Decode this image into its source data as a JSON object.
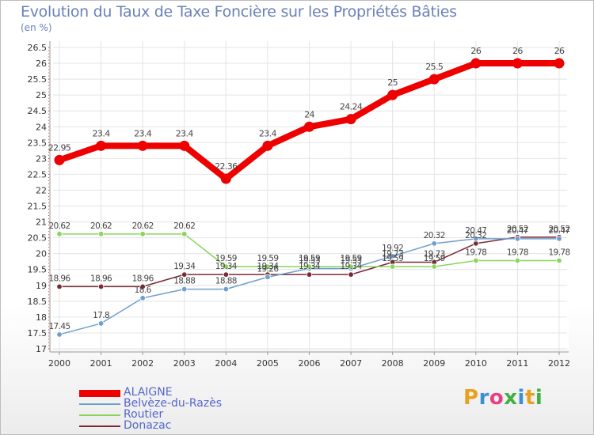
{
  "chart_data": {
    "type": "line",
    "title": "Evolution du Taux de Taxe Foncière sur les Propriétés Bâties",
    "subtitle": "(en %)",
    "xlabel": "",
    "ylabel": "",
    "categories": [
      "2000",
      "2001",
      "2002",
      "2003",
      "2004",
      "2005",
      "2006",
      "2007",
      "2008",
      "2009",
      "2010",
      "2011",
      "2012"
    ],
    "ylim": [
      17,
      26.5
    ],
    "yticks": [
      "17",
      "17.5",
      "18",
      "18.5",
      "19",
      "19.5",
      "20",
      "20.5",
      "21",
      "21.5",
      "22",
      "22.5",
      "23",
      "23.5",
      "24",
      "24.5",
      "25",
      "25.5",
      "26",
      "26.5"
    ],
    "series": [
      {
        "name": "ALAIGNE",
        "color": "#ee0000",
        "values": [
          22.95,
          23.4,
          23.4,
          23.4,
          22.36,
          23.4,
          24,
          24.24,
          25,
          25.5,
          26,
          26,
          26
        ],
        "labels": [
          "22.95",
          "23.4",
          "23.4",
          "23.4",
          "22.36",
          "23.4",
          "24",
          "24.24",
          "25",
          "25.5",
          "26",
          "26",
          "26"
        ]
      },
      {
        "name": "Belvèze-du-Razès",
        "color": "#6f9fcf",
        "values": [
          17.45,
          17.8,
          18.6,
          18.88,
          18.88,
          19.26,
          19.53,
          19.53,
          19.92,
          20.32,
          20.47,
          20.47,
          20.47
        ],
        "labels": [
          "17.45",
          "17.8",
          "18.6",
          "18.88",
          "18.88",
          "19.26",
          "19.53",
          "19.53",
          "19.92",
          "20.32",
          "20.47",
          "20.47",
          "20.47"
        ]
      },
      {
        "name": "Routier",
        "color": "#88d65a",
        "values": [
          20.62,
          20.62,
          20.62,
          20.62,
          19.59,
          19.59,
          19.59,
          19.59,
          19.59,
          19.59,
          19.78,
          19.78,
          19.78
        ],
        "labels": [
          "20.62",
          "20.62",
          "20.62",
          "20.62",
          "19.59",
          "19.59",
          "19.59",
          "19.59",
          "19.59",
          "19.59",
          "19.78",
          "19.78",
          "19.78"
        ]
      },
      {
        "name": "Donazac",
        "color": "#7a2a35",
        "values": [
          18.96,
          18.96,
          18.96,
          19.34,
          19.34,
          19.34,
          19.34,
          19.34,
          19.73,
          19.73,
          20.32,
          20.52,
          20.52
        ],
        "labels": [
          "18.96",
          "18.96",
          "18.96",
          "19.34",
          "19.34",
          "19.34",
          "19.34",
          "19.34",
          "19.73",
          "19.73",
          "20.32",
          "20.52",
          "20.52"
        ]
      }
    ]
  },
  "legend": {
    "items": [
      "ALAIGNE",
      "Belvèze-du-Razès",
      "Routier",
      "Donazac"
    ]
  },
  "brand": {
    "logo_text": "Proxiti",
    "logo_colors": [
      "#e8a020",
      "#3a8fd8",
      "#e84080",
      "#40b040",
      "#3a8fd8",
      "#e8a020",
      "#40b040"
    ]
  }
}
